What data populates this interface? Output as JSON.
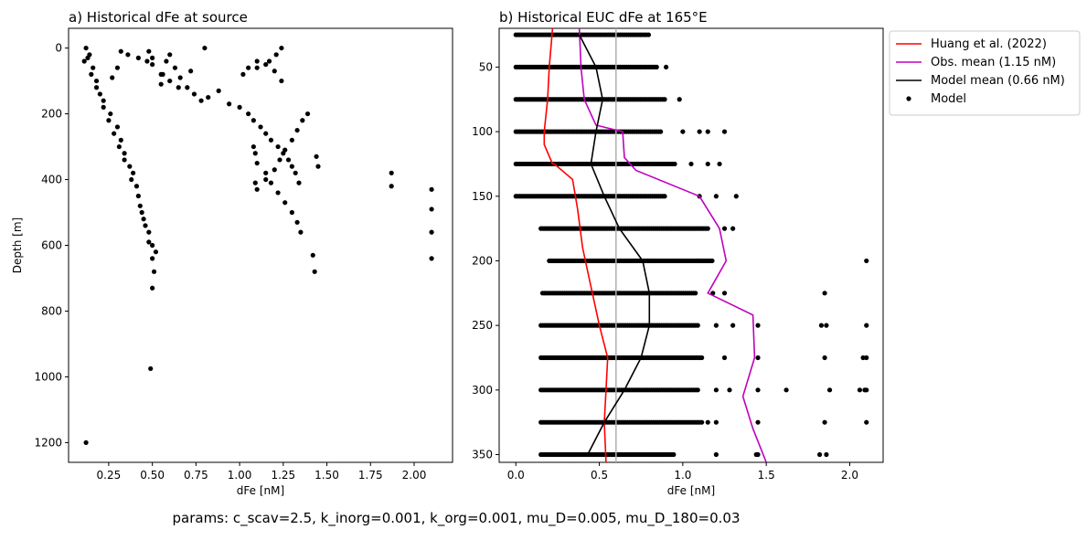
{
  "figure_caption": "params: c_scav=2.5, k_inorg=0.001, k_org=0.001, mu_D=0.005, mu_D_180=0.03",
  "chart_data": [
    {
      "type": "scatter",
      "title": "a) Historical dFe at source",
      "xlabel": "dFe [nM]",
      "ylabel": "Depth [m]",
      "xlim": [
        0.02,
        2.22
      ],
      "ylim": [
        1260,
        -60
      ],
      "y_inverted": true,
      "xticks": [
        0.25,
        0.5,
        0.75,
        1.0,
        1.25,
        1.5,
        1.75,
        2.0
      ],
      "xtick_labels": [
        "0.25",
        "0.50",
        "0.75",
        "1.00",
        "1.25",
        "1.50",
        "1.75",
        "2.00"
      ],
      "yticks": [
        0,
        200,
        400,
        600,
        800,
        1000,
        1200
      ],
      "ytick_labels": [
        "0",
        "200",
        "400",
        "600",
        "800",
        "1000",
        "1200"
      ],
      "grid": false,
      "marker_color": "#000000",
      "series": [
        {
          "x": [
            0.12,
            0.14,
            0.16,
            0.18,
            0.2,
            0.22,
            0.25,
            0.28,
            0.31,
            0.34,
            0.38,
            0.42,
            0.44,
            0.46,
            0.48,
            0.5,
            0.51,
            0.5,
            0.49,
            0.12,
            0.11,
            0.13,
            0.15,
            0.18,
            0.22,
            0.26,
            0.3,
            0.32,
            0.34,
            0.37,
            0.39,
            0.41,
            0.43,
            0.45,
            0.48,
            0.5,
            0.52,
            0.55,
            0.56,
            0.58,
            0.6,
            0.63,
            0.66,
            0.7,
            0.74,
            0.78,
            0.82,
            0.88,
            0.94,
            1.0,
            1.05,
            1.08,
            1.12,
            1.15,
            1.18,
            1.22,
            1.25,
            1.28,
            1.3,
            1.32,
            1.34,
            1.24,
            1.2,
            1.15,
            1.1,
            1.05,
            1.02,
            1.08,
            1.1,
            1.15,
            1.18,
            1.22,
            1.26,
            1.3,
            1.33,
            1.35,
            1.09,
            1.09,
            1.1,
            1.15,
            1.2,
            1.23,
            1.26,
            1.3,
            1.33,
            1.36,
            1.39,
            1.42,
            1.43,
            1.44,
            1.45,
            1.87,
            1.87,
            2.1,
            2.1,
            2.1,
            2.1,
            0.32,
            0.36,
            0.42,
            0.47,
            0.5,
            0.55,
            0.6,
            0.65,
            0.72,
            0.8,
            0.27,
            0.3,
            0.48,
            0.5,
            1.24,
            1.21,
            1.17,
            1.1
          ],
          "y": [
            0,
            20,
            60,
            100,
            140,
            180,
            220,
            260,
            300,
            340,
            400,
            450,
            500,
            540,
            590,
            640,
            680,
            730,
            975,
            1200,
            40,
            30,
            80,
            120,
            160,
            200,
            240,
            280,
            320,
            360,
            380,
            420,
            480,
            520,
            560,
            600,
            620,
            110,
            80,
            40,
            20,
            60,
            90,
            120,
            140,
            160,
            150,
            130,
            170,
            180,
            200,
            220,
            240,
            260,
            280,
            300,
            320,
            340,
            360,
            380,
            410,
            100,
            70,
            50,
            40,
            60,
            80,
            300,
            350,
            380,
            410,
            440,
            470,
            500,
            530,
            560,
            320,
            410,
            430,
            400,
            370,
            340,
            310,
            280,
            250,
            220,
            200,
            630,
            680,
            330,
            360,
            380,
            420,
            430,
            490,
            560,
            640,
            10,
            20,
            30,
            40,
            50,
            80,
            100,
            120,
            70,
            0,
            90,
            60,
            10,
            30,
            0,
            20,
            40,
            60
          ]
        }
      ]
    },
    {
      "type": "scatter",
      "title": "b) Historical EUC dFe at 165°E",
      "xlabel": "dFe [nM]",
      "ylabel": "",
      "xlim": [
        -0.1,
        2.2
      ],
      "ylim": [
        356,
        20
      ],
      "y_inverted": true,
      "xticks": [
        0.0,
        0.5,
        1.0,
        1.5,
        2.0
      ],
      "xtick_labels": [
        "0.0",
        "0.5",
        "1.0",
        "1.5",
        "2.0"
      ],
      "yticks": [
        50,
        100,
        150,
        200,
        250,
        300,
        350
      ],
      "ytick_labels": [
        "50",
        "100",
        "150",
        "200",
        "250",
        "300",
        "350"
      ],
      "grid": false,
      "vline_x": 0.6,
      "vline_color": "#b0b0b0",
      "legend": {
        "placement": "outside-upper-right",
        "entries": [
          "Huang et al. (2022)",
          "Obs. mean (1.15 nM)",
          "Model mean (0.66 nM)",
          "Model"
        ]
      },
      "depth_levels": [
        25,
        50,
        75,
        100,
        125,
        150,
        175,
        200,
        225,
        250,
        275,
        300,
        325,
        350
      ],
      "model_band_min": [
        0.0,
        0.0,
        0.0,
        0.0,
        0.0,
        0.0,
        0.15,
        0.2,
        0.16,
        0.15,
        0.15,
        0.15,
        0.15,
        0.15
      ],
      "model_band_max": [
        0.8,
        0.85,
        0.9,
        0.87,
        0.96,
        0.9,
        1.15,
        1.18,
        1.08,
        1.1,
        1.12,
        1.1,
        1.12,
        0.95
      ],
      "model_outliers": [
        {
          "x": 0.9,
          "y": 50
        },
        {
          "x": 0.98,
          "y": 75
        },
        {
          "x": 1.0,
          "y": 100
        },
        {
          "x": 1.1,
          "y": 100
        },
        {
          "x": 1.15,
          "y": 100
        },
        {
          "x": 1.25,
          "y": 100
        },
        {
          "x": 1.05,
          "y": 125
        },
        {
          "x": 1.15,
          "y": 125
        },
        {
          "x": 1.22,
          "y": 125
        },
        {
          "x": 1.1,
          "y": 150
        },
        {
          "x": 1.2,
          "y": 150
        },
        {
          "x": 1.32,
          "y": 150
        },
        {
          "x": 1.25,
          "y": 175
        },
        {
          "x": 1.3,
          "y": 175
        },
        {
          "x": 2.1,
          "y": 200
        },
        {
          "x": 1.18,
          "y": 225
        },
        {
          "x": 1.25,
          "y": 225
        },
        {
          "x": 1.85,
          "y": 225
        },
        {
          "x": 1.2,
          "y": 250
        },
        {
          "x": 1.3,
          "y": 250
        },
        {
          "x": 1.45,
          "y": 250
        },
        {
          "x": 1.83,
          "y": 250
        },
        {
          "x": 1.86,
          "y": 250
        },
        {
          "x": 2.1,
          "y": 250
        },
        {
          "x": 1.25,
          "y": 275
        },
        {
          "x": 1.45,
          "y": 275
        },
        {
          "x": 1.85,
          "y": 275
        },
        {
          "x": 2.08,
          "y": 275
        },
        {
          "x": 2.1,
          "y": 275
        },
        {
          "x": 1.2,
          "y": 300
        },
        {
          "x": 1.28,
          "y": 300
        },
        {
          "x": 1.45,
          "y": 300
        },
        {
          "x": 1.62,
          "y": 300
        },
        {
          "x": 1.88,
          "y": 300
        },
        {
          "x": 2.06,
          "y": 300
        },
        {
          "x": 2.09,
          "y": 300
        },
        {
          "x": 2.1,
          "y": 300
        },
        {
          "x": 1.15,
          "y": 325
        },
        {
          "x": 1.2,
          "y": 325
        },
        {
          "x": 1.45,
          "y": 325
        },
        {
          "x": 1.85,
          "y": 325
        },
        {
          "x": 2.1,
          "y": 325
        },
        {
          "x": 1.2,
          "y": 350
        },
        {
          "x": 1.44,
          "y": 350
        },
        {
          "x": 1.45,
          "y": 350
        },
        {
          "x": 1.82,
          "y": 350
        },
        {
          "x": 1.86,
          "y": 350
        }
      ],
      "series": [
        {
          "name": "Huang et al. (2022)",
          "color": "#ff0000",
          "x": [
            0.22,
            0.2,
            0.19,
            0.17,
            0.17,
            0.22,
            0.23,
            0.34,
            0.37,
            0.4,
            0.45,
            0.5,
            0.55,
            0.54,
            0.53,
            0.54
          ],
          "y": [
            20,
            50,
            75,
            100,
            110,
            125,
            125,
            137,
            160,
            190,
            220,
            250,
            275,
            300,
            325,
            356
          ]
        },
        {
          "name": "Obs. mean (1.15 nM)",
          "color": "#c000c0",
          "x": [
            0.38,
            0.39,
            0.41,
            0.48,
            0.64,
            0.65,
            0.72,
            1.1,
            1.22,
            1.26,
            1.15,
            1.42,
            1.43,
            1.36,
            1.42,
            1.5
          ],
          "y": [
            20,
            50,
            75,
            95,
            100,
            120,
            130,
            150,
            175,
            200,
            225,
            242,
            275,
            305,
            330,
            356
          ]
        },
        {
          "name": "Model mean (0.66 nM)",
          "color": "#000000",
          "x": [
            0.38,
            0.48,
            0.52,
            0.48,
            0.45,
            0.53,
            0.62,
            0.76,
            0.8,
            0.8,
            0.75,
            0.65,
            0.53,
            0.43
          ],
          "y": [
            25,
            50,
            75,
            100,
            125,
            150,
            175,
            200,
            225,
            250,
            275,
            300,
            325,
            350
          ]
        }
      ]
    }
  ]
}
